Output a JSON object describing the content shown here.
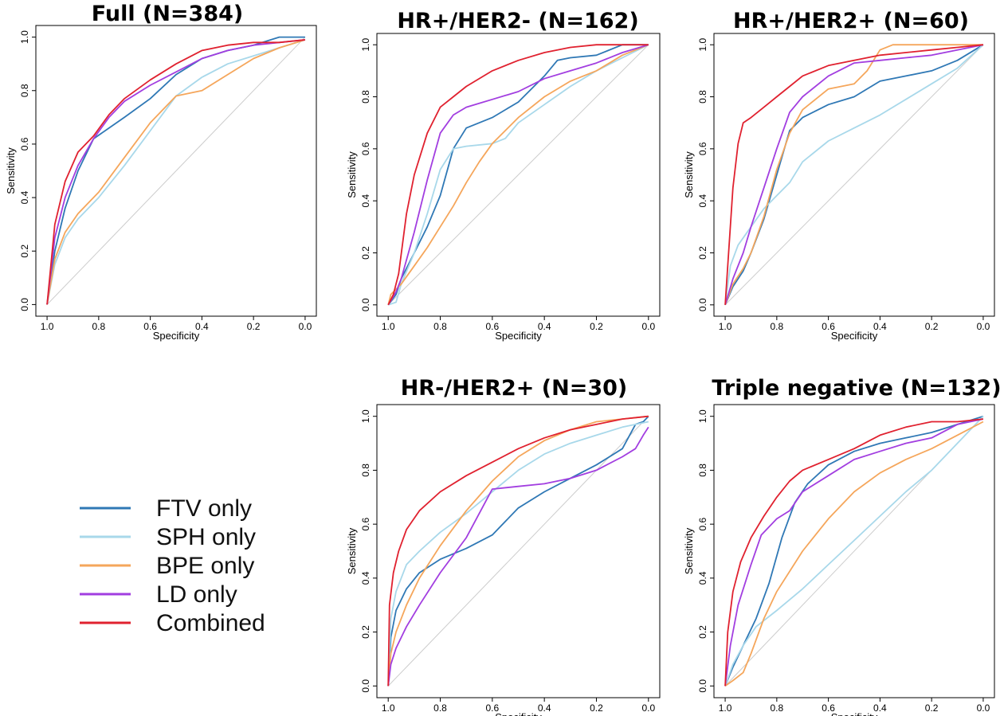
{
  "colors": {
    "FTV only": "#2f78b5",
    "SPH only": "#a8d8ea",
    "BPE only": "#f5a65b",
    "LD only": "#a23ee0",
    "Combined": "#e0212f",
    "diagonal": "#cccccc"
  },
  "legend": {
    "placement": "bottom-left",
    "entries": [
      "FTV only",
      "SPH only",
      "BPE only",
      "LD only",
      "Combined"
    ]
  },
  "chart_data": [
    {
      "type": "line",
      "title": "Full (N=384)",
      "xlabel": "Specificity",
      "ylabel": "Sensitivity",
      "xlim": [
        1.0,
        0.0
      ],
      "ylim": [
        0.0,
        1.0
      ],
      "xticks": [
        "1.0",
        "0.8",
        "0.6",
        "0.4",
        "0.2",
        "0.0"
      ],
      "yticks": [
        "0.0",
        "0.2",
        "0.4",
        "0.6",
        "0.8",
        "1.0"
      ],
      "series": [
        {
          "name": "FTV only",
          "x": [
            1.0,
            0.97,
            0.93,
            0.88,
            0.82,
            0.76,
            0.7,
            0.6,
            0.5,
            0.4,
            0.3,
            0.2,
            0.1,
            0.0
          ],
          "y": [
            0.0,
            0.2,
            0.36,
            0.5,
            0.62,
            0.66,
            0.7,
            0.77,
            0.86,
            0.92,
            0.95,
            0.97,
            1.0,
            1.0
          ]
        },
        {
          "name": "SPH only",
          "x": [
            1.0,
            0.97,
            0.93,
            0.88,
            0.8,
            0.7,
            0.6,
            0.5,
            0.4,
            0.3,
            0.2,
            0.1,
            0.0
          ],
          "y": [
            0.0,
            0.15,
            0.25,
            0.32,
            0.4,
            0.52,
            0.65,
            0.78,
            0.85,
            0.9,
            0.93,
            0.96,
            0.99
          ]
        },
        {
          "name": "BPE only",
          "x": [
            1.0,
            0.97,
            0.93,
            0.88,
            0.8,
            0.7,
            0.6,
            0.5,
            0.45,
            0.4,
            0.3,
            0.2,
            0.1,
            0.0
          ],
          "y": [
            0.0,
            0.17,
            0.27,
            0.34,
            0.42,
            0.55,
            0.68,
            0.78,
            0.79,
            0.8,
            0.86,
            0.92,
            0.96,
            0.99
          ]
        },
        {
          "name": "LD only",
          "x": [
            1.0,
            0.97,
            0.93,
            0.88,
            0.82,
            0.76,
            0.7,
            0.6,
            0.5,
            0.4,
            0.3,
            0.2,
            0.1,
            0.0
          ],
          "y": [
            0.0,
            0.25,
            0.4,
            0.52,
            0.62,
            0.7,
            0.76,
            0.82,
            0.87,
            0.92,
            0.95,
            0.97,
            0.98,
            0.99
          ]
        },
        {
          "name": "Combined",
          "x": [
            1.0,
            0.97,
            0.93,
            0.88,
            0.82,
            0.76,
            0.7,
            0.6,
            0.5,
            0.4,
            0.3,
            0.2,
            0.1,
            0.0
          ],
          "y": [
            0.0,
            0.3,
            0.46,
            0.57,
            0.63,
            0.71,
            0.77,
            0.84,
            0.9,
            0.95,
            0.97,
            0.98,
            0.98,
            0.99
          ]
        }
      ]
    },
    {
      "type": "line",
      "title": "HR+/HER2- (N=162)",
      "xlabel": "Specificity",
      "ylabel": "Sensitivity",
      "xlim": [
        1.0,
        0.0
      ],
      "ylim": [
        0.0,
        1.0
      ],
      "xticks": [
        "1.0",
        "0.8",
        "0.6",
        "0.4",
        "0.2",
        "0.0"
      ],
      "yticks": [
        "0.0",
        "0.2",
        "0.4",
        "0.6",
        "0.8",
        "1.0"
      ],
      "series": [
        {
          "name": "FTV only",
          "x": [
            1.0,
            0.97,
            0.95,
            0.9,
            0.85,
            0.8,
            0.75,
            0.7,
            0.6,
            0.5,
            0.4,
            0.35,
            0.3,
            0.2,
            0.1,
            0.0
          ],
          "y": [
            0.0,
            0.04,
            0.1,
            0.2,
            0.3,
            0.42,
            0.6,
            0.68,
            0.72,
            0.78,
            0.88,
            0.94,
            0.95,
            0.96,
            1.0,
            1.0
          ]
        },
        {
          "name": "SPH only",
          "x": [
            1.0,
            0.97,
            0.95,
            0.9,
            0.85,
            0.8,
            0.75,
            0.7,
            0.6,
            0.55,
            0.5,
            0.4,
            0.3,
            0.2,
            0.1,
            0.0
          ],
          "y": [
            0.0,
            0.01,
            0.08,
            0.2,
            0.35,
            0.52,
            0.6,
            0.61,
            0.62,
            0.64,
            0.7,
            0.77,
            0.84,
            0.9,
            0.95,
            1.0
          ]
        },
        {
          "name": "BPE only",
          "x": [
            1.0,
            0.99,
            0.97,
            0.95,
            0.9,
            0.85,
            0.8,
            0.75,
            0.7,
            0.65,
            0.6,
            0.5,
            0.4,
            0.3,
            0.2,
            0.1,
            0.0
          ],
          "y": [
            0.0,
            0.04,
            0.06,
            0.08,
            0.15,
            0.22,
            0.3,
            0.38,
            0.47,
            0.55,
            0.62,
            0.72,
            0.8,
            0.86,
            0.9,
            0.96,
            1.0
          ]
        },
        {
          "name": "LD only",
          "x": [
            1.0,
            0.97,
            0.95,
            0.9,
            0.85,
            0.8,
            0.75,
            0.7,
            0.6,
            0.5,
            0.4,
            0.3,
            0.2,
            0.1,
            0.0
          ],
          "y": [
            0.0,
            0.05,
            0.1,
            0.28,
            0.48,
            0.66,
            0.73,
            0.76,
            0.79,
            0.82,
            0.87,
            0.9,
            0.93,
            0.97,
            1.0
          ]
        },
        {
          "name": "Combined",
          "x": [
            1.0,
            0.98,
            0.96,
            0.93,
            0.9,
            0.85,
            0.8,
            0.75,
            0.7,
            0.6,
            0.5,
            0.4,
            0.3,
            0.2,
            0.1,
            0.0
          ],
          "y": [
            0.0,
            0.04,
            0.12,
            0.35,
            0.5,
            0.66,
            0.76,
            0.8,
            0.84,
            0.9,
            0.94,
            0.97,
            0.99,
            1.0,
            1.0,
            1.0
          ]
        }
      ]
    },
    {
      "type": "line",
      "title": "HR+/HER2+ (N=60)",
      "xlabel": "Specificity",
      "ylabel": "Sensitivity",
      "xlim": [
        1.0,
        0.0
      ],
      "ylim": [
        0.0,
        1.0
      ],
      "xticks": [
        "1.0",
        "0.8",
        "0.6",
        "0.4",
        "0.2",
        "0.0"
      ],
      "yticks": [
        "0.0",
        "0.2",
        "0.4",
        "0.6",
        "0.8",
        "1.0"
      ],
      "series": [
        {
          "name": "FTV only",
          "x": [
            1.0,
            0.97,
            0.93,
            0.9,
            0.85,
            0.8,
            0.75,
            0.7,
            0.6,
            0.5,
            0.4,
            0.3,
            0.2,
            0.1,
            0.0
          ],
          "y": [
            0.0,
            0.07,
            0.13,
            0.2,
            0.33,
            0.5,
            0.67,
            0.72,
            0.77,
            0.8,
            0.86,
            0.88,
            0.9,
            0.94,
            1.0
          ]
        },
        {
          "name": "SPH only",
          "x": [
            1.0,
            0.98,
            0.95,
            0.9,
            0.85,
            0.8,
            0.75,
            0.7,
            0.6,
            0.5,
            0.4,
            0.3,
            0.2,
            0.1,
            0.0
          ],
          "y": [
            0.0,
            0.15,
            0.23,
            0.3,
            0.37,
            0.42,
            0.47,
            0.55,
            0.63,
            0.68,
            0.73,
            0.79,
            0.85,
            0.91,
            1.0
          ]
        },
        {
          "name": "BPE only",
          "x": [
            1.0,
            0.97,
            0.93,
            0.9,
            0.85,
            0.8,
            0.75,
            0.7,
            0.6,
            0.5,
            0.45,
            0.4,
            0.35,
            0.2,
            0.0
          ],
          "y": [
            0.0,
            0.08,
            0.14,
            0.2,
            0.34,
            0.52,
            0.66,
            0.75,
            0.83,
            0.85,
            0.9,
            0.98,
            1.0,
            1.0,
            1.0
          ]
        },
        {
          "name": "LD only",
          "x": [
            1.0,
            0.97,
            0.93,
            0.9,
            0.85,
            0.8,
            0.75,
            0.7,
            0.6,
            0.5,
            0.4,
            0.3,
            0.2,
            0.1,
            0.0
          ],
          "y": [
            0.0,
            0.1,
            0.2,
            0.3,
            0.45,
            0.6,
            0.74,
            0.8,
            0.88,
            0.93,
            0.94,
            0.95,
            0.96,
            0.98,
            1.0
          ]
        },
        {
          "name": "Combined",
          "x": [
            1.0,
            0.99,
            0.97,
            0.95,
            0.93,
            0.9,
            0.85,
            0.8,
            0.75,
            0.7,
            0.6,
            0.5,
            0.4,
            0.3,
            0.2,
            0.1,
            0.0
          ],
          "y": [
            0.0,
            0.15,
            0.45,
            0.62,
            0.7,
            0.72,
            0.76,
            0.8,
            0.84,
            0.88,
            0.92,
            0.94,
            0.96,
            0.97,
            0.98,
            0.99,
            1.0
          ]
        }
      ]
    },
    {
      "type": "line",
      "title": "HR-/HER2+ (N=30)",
      "xlabel": "Specificity",
      "ylabel": "Sensitivity",
      "xlim": [
        1.0,
        0.0
      ],
      "ylim": [
        0.0,
        1.0
      ],
      "xticks": [
        "1.0",
        "0.8",
        "0.6",
        "0.4",
        "0.2",
        "0.0"
      ],
      "yticks": [
        "0.0",
        "0.2",
        "0.4",
        "0.6",
        "0.8",
        "1.0"
      ],
      "series": [
        {
          "name": "FTV only",
          "x": [
            1.0,
            0.99,
            0.97,
            0.93,
            0.88,
            0.8,
            0.7,
            0.6,
            0.5,
            0.4,
            0.3,
            0.2,
            0.1,
            0.05,
            0.02,
            0.0
          ],
          "y": [
            0.0,
            0.18,
            0.28,
            0.36,
            0.42,
            0.47,
            0.51,
            0.56,
            0.66,
            0.72,
            0.77,
            0.82,
            0.88,
            0.97,
            0.98,
            1.0
          ]
        },
        {
          "name": "SPH only",
          "x": [
            1.0,
            0.99,
            0.97,
            0.93,
            0.88,
            0.8,
            0.7,
            0.6,
            0.5,
            0.4,
            0.3,
            0.2,
            0.1,
            0.0
          ],
          "y": [
            0.0,
            0.25,
            0.35,
            0.45,
            0.5,
            0.57,
            0.64,
            0.72,
            0.8,
            0.86,
            0.9,
            0.93,
            0.96,
            0.98
          ]
        },
        {
          "name": "BPE only",
          "x": [
            1.0,
            0.99,
            0.97,
            0.93,
            0.88,
            0.8,
            0.7,
            0.6,
            0.5,
            0.4,
            0.3,
            0.2,
            0.1,
            0.0
          ],
          "y": [
            0.0,
            0.12,
            0.2,
            0.3,
            0.4,
            0.52,
            0.65,
            0.76,
            0.85,
            0.91,
            0.95,
            0.98,
            0.99,
            1.0
          ]
        },
        {
          "name": "LD only",
          "x": [
            1.0,
            0.99,
            0.97,
            0.93,
            0.88,
            0.8,
            0.7,
            0.6,
            0.5,
            0.4,
            0.3,
            0.2,
            0.1,
            0.05,
            0.02,
            0.0
          ],
          "y": [
            0.0,
            0.08,
            0.14,
            0.22,
            0.3,
            0.42,
            0.55,
            0.73,
            0.74,
            0.75,
            0.77,
            0.8,
            0.85,
            0.88,
            0.93,
            0.96
          ]
        },
        {
          "name": "Combined",
          "x": [
            1.0,
            0.995,
            0.98,
            0.96,
            0.93,
            0.88,
            0.8,
            0.7,
            0.6,
            0.5,
            0.4,
            0.3,
            0.2,
            0.1,
            0.0
          ],
          "y": [
            0.0,
            0.3,
            0.42,
            0.5,
            0.58,
            0.65,
            0.72,
            0.78,
            0.83,
            0.88,
            0.92,
            0.95,
            0.97,
            0.99,
            1.0
          ]
        }
      ]
    },
    {
      "type": "line",
      "title": "Triple negative (N=132)",
      "xlabel": "Specificity",
      "ylabel": "Sensitivity",
      "xlim": [
        1.0,
        0.0
      ],
      "ylim": [
        0.0,
        1.0
      ],
      "xticks": [
        "1.0",
        "0.8",
        "0.6",
        "0.4",
        "0.2",
        "0.0"
      ],
      "yticks": [
        "0.0",
        "0.2",
        "0.4",
        "0.6",
        "0.8",
        "1.0"
      ],
      "series": [
        {
          "name": "FTV only",
          "x": [
            1.0,
            0.97,
            0.93,
            0.88,
            0.83,
            0.78,
            0.73,
            0.68,
            0.6,
            0.5,
            0.4,
            0.3,
            0.2,
            0.1,
            0.0
          ],
          "y": [
            0.0,
            0.07,
            0.15,
            0.25,
            0.38,
            0.55,
            0.68,
            0.75,
            0.82,
            0.87,
            0.9,
            0.92,
            0.94,
            0.97,
            1.0
          ]
        },
        {
          "name": "SPH only",
          "x": [
            1.0,
            0.97,
            0.93,
            0.88,
            0.8,
            0.7,
            0.6,
            0.5,
            0.4,
            0.3,
            0.2,
            0.1,
            0.0
          ],
          "y": [
            0.0,
            0.08,
            0.15,
            0.22,
            0.28,
            0.36,
            0.45,
            0.54,
            0.63,
            0.72,
            0.8,
            0.9,
            1.0
          ]
        },
        {
          "name": "BPE only",
          "x": [
            1.0,
            0.97,
            0.93,
            0.9,
            0.85,
            0.8,
            0.7,
            0.6,
            0.5,
            0.4,
            0.3,
            0.2,
            0.1,
            0.0
          ],
          "y": [
            0.0,
            0.02,
            0.05,
            0.12,
            0.25,
            0.35,
            0.5,
            0.62,
            0.72,
            0.79,
            0.84,
            0.88,
            0.93,
            0.98
          ]
        },
        {
          "name": "LD only",
          "x": [
            1.0,
            0.98,
            0.95,
            0.9,
            0.86,
            0.8,
            0.75,
            0.7,
            0.6,
            0.5,
            0.4,
            0.3,
            0.2,
            0.1,
            0.0
          ],
          "y": [
            0.0,
            0.15,
            0.3,
            0.45,
            0.56,
            0.62,
            0.65,
            0.72,
            0.78,
            0.84,
            0.87,
            0.9,
            0.92,
            0.97,
            0.99
          ]
        },
        {
          "name": "Combined",
          "x": [
            1.0,
            0.99,
            0.97,
            0.94,
            0.9,
            0.85,
            0.8,
            0.75,
            0.7,
            0.6,
            0.5,
            0.4,
            0.3,
            0.2,
            0.1,
            0.0
          ],
          "y": [
            0.0,
            0.2,
            0.35,
            0.46,
            0.55,
            0.63,
            0.7,
            0.76,
            0.8,
            0.84,
            0.88,
            0.93,
            0.96,
            0.98,
            0.98,
            0.99
          ]
        }
      ]
    }
  ]
}
